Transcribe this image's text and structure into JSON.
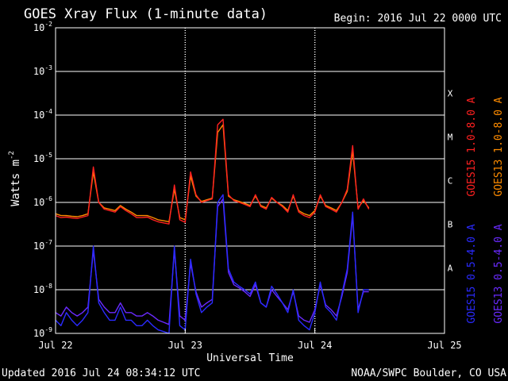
{
  "chart_data": {
    "type": "line",
    "title": "GOES Xray Flux (1-minute data)",
    "begin_label": "Begin:  2016 Jul 22 0000 UTC",
    "xlabel": "Universal Time",
    "ylabel": "Watts m",
    "ylabel_exponent": "-2",
    "yscale": "log",
    "ylim": [
      1e-09,
      0.01
    ],
    "y_ticks": [
      {
        "base": "10",
        "exp": "-9"
      },
      {
        "base": "10",
        "exp": "-8"
      },
      {
        "base": "10",
        "exp": "-7"
      },
      {
        "base": "10",
        "exp": "-6"
      },
      {
        "base": "10",
        "exp": "-5"
      },
      {
        "base": "10",
        "exp": "-4"
      },
      {
        "base": "10",
        "exp": "-3"
      },
      {
        "base": "10",
        "exp": "-2"
      }
    ],
    "x_range_hours": [
      0,
      72
    ],
    "x_ticks": [
      "Jul 22",
      "Jul 23",
      "Jul 24",
      "Jul 25"
    ],
    "flare_classes": [
      {
        "label": "A",
        "value": 1e-08
      },
      {
        "label": "B",
        "value": 1e-07
      },
      {
        "label": "C",
        "value": 1e-06
      },
      {
        "label": "M",
        "value": 1e-05
      },
      {
        "label": "X",
        "value": 0.0001
      }
    ],
    "day_boundaries_hours": [
      24,
      48
    ],
    "grid": true,
    "legend_position": "right, vertical",
    "colors": {
      "goes15_long": "#ff2020",
      "goes13_long": "#ff8c00",
      "goes15_short": "#2a2aff",
      "goes13_short": "#6a2aff",
      "grid": "#ffffff",
      "background": "#000000"
    },
    "series": [
      {
        "name": "GOES15 1.0-8.0 A",
        "color": "#ff2020",
        "x": [
          0,
          1,
          2,
          3,
          4,
          5,
          6,
          7,
          8,
          9,
          10,
          11,
          12,
          13,
          14,
          15,
          16,
          17,
          18,
          19,
          20,
          21,
          22,
          23,
          24,
          25,
          26,
          27,
          28,
          29,
          30,
          31,
          32,
          33,
          34,
          35,
          36,
          37,
          38,
          39,
          40,
          41,
          42,
          43,
          44,
          45,
          46,
          47,
          48,
          49,
          50,
          51,
          52,
          53,
          54,
          55,
          56,
          57,
          58
        ],
        "y": [
          5e-07,
          4.5e-07,
          4.6e-07,
          4.4e-07,
          4.3e-07,
          4.6e-07,
          5e-07,
          6.5e-06,
          1e-06,
          7e-07,
          6.5e-07,
          6e-07,
          8e-07,
          6.5e-07,
          5.5e-07,
          4.5e-07,
          4.5e-07,
          4.6e-07,
          4e-07,
          3.6e-07,
          3.4e-07,
          3.2e-07,
          2.5e-06,
          4e-07,
          3.5e-07,
          5e-06,
          1.5e-06,
          1e-06,
          1.1e-06,
          1.2e-06,
          6e-05,
          8e-05,
          1.5e-06,
          1.1e-06,
          1e-06,
          9e-07,
          8e-07,
          1.5e-06,
          8e-07,
          7e-07,
          1.3e-06,
          1e-06,
          8e-07,
          6e-07,
          1.5e-06,
          6e-07,
          5e-07,
          4.5e-07,
          6e-07,
          1.5e-06,
          8e-07,
          7e-07,
          6e-07,
          1e-06,
          2e-06,
          2e-05,
          7e-07,
          1.2e-06,
          7e-07
        ]
      },
      {
        "name": "GOES13 1.0-8.0 A",
        "color": "#ff8c00",
        "x": [
          0,
          1,
          2,
          3,
          4,
          5,
          6,
          7,
          8,
          9,
          10,
          11,
          12,
          13,
          14,
          15,
          16,
          17,
          18,
          19,
          20,
          21,
          22,
          23,
          24,
          25,
          26,
          27,
          28,
          29,
          30,
          31,
          32,
          33,
          34,
          35,
          36,
          37,
          38,
          39,
          40,
          41,
          42,
          43,
          44,
          45,
          46,
          47,
          48,
          49,
          50,
          51,
          52,
          53,
          54,
          55,
          56,
          57,
          58
        ],
        "y": [
          5.5e-07,
          5e-07,
          5e-07,
          4.8e-07,
          4.7e-07,
          5e-07,
          5.5e-07,
          5e-06,
          1e-06,
          7.5e-07,
          7e-07,
          6.5e-07,
          8.5e-07,
          7e-07,
          6e-07,
          5e-07,
          5e-07,
          5e-07,
          4.5e-07,
          4e-07,
          3.8e-07,
          3.6e-07,
          2e-06,
          4.5e-07,
          4e-07,
          4e-06,
          1.4e-06,
          1.05e-06,
          1.15e-06,
          1.25e-06,
          4e-05,
          6e-05,
          1.4e-06,
          1.15e-06,
          1.05e-06,
          9.5e-07,
          8.5e-07,
          1.4e-06,
          8.5e-07,
          7.5e-07,
          1.25e-06,
          1e-06,
          8.5e-07,
          6.5e-07,
          1.4e-06,
          6.5e-07,
          5.5e-07,
          5e-07,
          6.5e-07,
          1.4e-06,
          8.5e-07,
          7.5e-07,
          6.5e-07,
          1e-06,
          1.8e-06,
          1.5e-05,
          7.5e-07,
          1.1e-06,
          7.5e-07
        ]
      },
      {
        "name": "GOES15 0.5-4.0 A",
        "color": "#2a2aff",
        "x": [
          0,
          1,
          2,
          3,
          4,
          5,
          6,
          7,
          8,
          9,
          10,
          11,
          12,
          13,
          14,
          15,
          16,
          17,
          18,
          19,
          20,
          21,
          22,
          23,
          24,
          25,
          26,
          27,
          28,
          29,
          30,
          31,
          32,
          33,
          34,
          35,
          36,
          37,
          38,
          39,
          40,
          41,
          42,
          43,
          44,
          45,
          46,
          47,
          48,
          49,
          50,
          51,
          52,
          53,
          54,
          55,
          56,
          57,
          58
        ],
        "y": [
          2e-09,
          1.5e-09,
          3e-09,
          2e-09,
          1.5e-09,
          2e-09,
          3e-09,
          1e-07,
          5e-09,
          3e-09,
          2e-09,
          2e-09,
          4e-09,
          2e-09,
          2e-09,
          1.5e-09,
          1.5e-09,
          2e-09,
          1.5e-09,
          1.2e-09,
          1.1e-09,
          1e-09,
          1e-07,
          1.5e-09,
          1.2e-09,
          5e-08,
          8e-09,
          3e-09,
          4e-09,
          5e-09,
          1e-06,
          1.5e-06,
          3e-08,
          1.5e-08,
          1.2e-08,
          1e-08,
          8e-09,
          1.5e-08,
          5e-09,
          4e-09,
          1.2e-08,
          8e-09,
          5e-09,
          3e-09,
          1e-08,
          2e-09,
          1.5e-09,
          1.2e-09,
          3e-09,
          1.5e-08,
          4e-09,
          3e-09,
          2e-09,
          8e-09,
          3e-08,
          6e-07,
          3e-09,
          1e-08,
          1e-08
        ]
      },
      {
        "name": "GOES13 0.5-4.0 A",
        "color": "#6a2aff",
        "x": [
          0,
          1,
          2,
          3,
          4,
          5,
          6,
          7,
          8,
          9,
          10,
          11,
          12,
          13,
          14,
          15,
          16,
          17,
          18,
          19,
          20,
          21,
          22,
          23,
          24,
          25,
          26,
          27,
          28,
          29,
          30,
          31,
          32,
          33,
          34,
          35,
          36,
          37,
          38,
          39,
          40,
          41,
          42,
          43,
          44,
          45,
          46,
          47,
          48,
          49,
          50,
          51,
          52,
          53,
          54,
          55,
          56,
          57,
          58
        ],
        "y": [
          3e-09,
          2.5e-09,
          4e-09,
          3e-09,
          2.5e-09,
          3e-09,
          4e-09,
          8e-08,
          6e-09,
          4e-09,
          3e-09,
          3e-09,
          5e-09,
          3e-09,
          3e-09,
          2.5e-09,
          2.5e-09,
          3e-09,
          2.5e-09,
          2e-09,
          1.8e-09,
          1.6e-09,
          8e-08,
          2.5e-09,
          2e-09,
          4e-08,
          9e-09,
          4e-09,
          5e-09,
          6e-09,
          8e-07,
          1.2e-06,
          2.5e-08,
          1.3e-08,
          1.1e-08,
          9e-09,
          7e-09,
          1.3e-08,
          5e-09,
          4e-09,
          1e-08,
          7e-09,
          5e-09,
          3.5e-09,
          9e-09,
          2.5e-09,
          2e-09,
          1.8e-09,
          3.5e-09,
          1.3e-08,
          4.5e-09,
          3.5e-09,
          2.5e-09,
          7e-09,
          2.5e-08,
          5e-07,
          3.5e-09,
          9e-09,
          9e-09
        ]
      }
    ]
  },
  "footer": {
    "updated": "Updated 2016 Jul 24 08:34:12 UTC",
    "credit": "NOAA/SWPC Boulder, CO USA"
  }
}
